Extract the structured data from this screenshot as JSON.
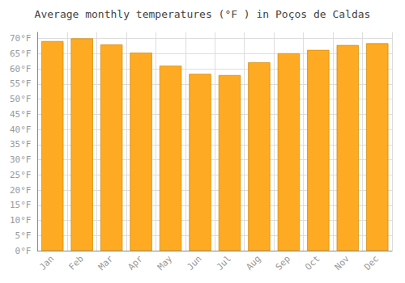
{
  "chart_data": {
    "type": "bar",
    "title": "Average monthly temperatures (°F ) in Poços de Caldas",
    "categories": [
      "Jan",
      "Feb",
      "Mar",
      "Apr",
      "May",
      "Jun",
      "Jul",
      "Aug",
      "Sep",
      "Oct",
      "Nov",
      "Dec"
    ],
    "values": [
      69.1,
      70.0,
      68.0,
      65.3,
      61.0,
      58.3,
      57.9,
      62.1,
      65.1,
      66.2,
      67.8,
      68.4
    ],
    "color": "#FFAA22",
    "ylim": [
      0,
      72
    ],
    "yticks": [
      {
        "value": 0,
        "label": "0°F"
      },
      {
        "value": 5,
        "label": "5°F"
      },
      {
        "value": 10,
        "label": "10°F"
      },
      {
        "value": 15,
        "label": "15°F"
      },
      {
        "value": 20,
        "label": "20°F"
      },
      {
        "value": 25,
        "label": "25°F"
      },
      {
        "value": 30,
        "label": "30°F"
      },
      {
        "value": 35,
        "label": "35°F"
      },
      {
        "value": 40,
        "label": "40°F"
      },
      {
        "value": 45,
        "label": "45°F"
      },
      {
        "value": 50,
        "label": "50°F"
      },
      {
        "value": 55,
        "label": "55°F"
      },
      {
        "value": 60,
        "label": "60°F"
      },
      {
        "value": 65,
        "label": "65°F"
      },
      {
        "value": 70,
        "label": "70°F"
      }
    ],
    "grid": true
  }
}
